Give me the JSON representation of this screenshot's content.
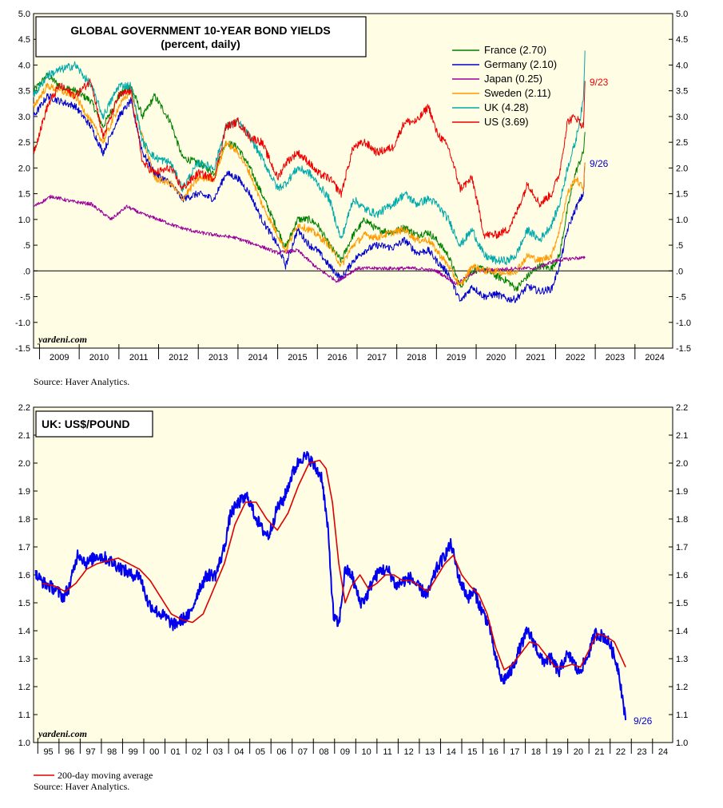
{
  "chart_data": [
    {
      "type": "line",
      "title": "GLOBAL GOVERNMENT 10-YEAR BOND YIELDS",
      "subtitle": "(percent, daily)",
      "ylim": [
        -1.5,
        5.0
      ],
      "y_ticks": [
        "5.0",
        "4.5",
        "4.0",
        "3.5",
        "3.0",
        "2.5",
        "2.0",
        "1.5",
        "1.0",
        ".5",
        ".0",
        "-.5",
        "-1.0",
        "-1.5"
      ],
      "x_ticks": [
        "2009",
        "2010",
        "2011",
        "2012",
        "2013",
        "2014",
        "2015",
        "2016",
        "2017",
        "2018",
        "2019",
        "2020",
        "2021",
        "2022",
        "2023",
        "2024"
      ],
      "x_range": [
        2008.85,
        2024.95
      ],
      "legend": "top-right",
      "series": [
        {
          "name": "France (2.70)",
          "color": "#008000",
          "x": [
            2008.85,
            2009.2,
            2009.5,
            2009.9,
            2010.3,
            2010.6,
            2011.0,
            2011.3,
            2011.6,
            2011.9,
            2012.3,
            2012.6,
            2013.0,
            2013.4,
            2013.7,
            2014.0,
            2014.3,
            2014.6,
            2015.0,
            2015.2,
            2015.5,
            2015.8,
            2016.0,
            2016.3,
            2016.6,
            2016.9,
            2017.2,
            2017.5,
            2017.9,
            2018.2,
            2018.5,
            2018.8,
            2019.0,
            2019.3,
            2019.6,
            2019.9,
            2020.2,
            2020.5,
            2020.8,
            2021.0,
            2021.3,
            2021.6,
            2021.9,
            2022.1,
            2022.3,
            2022.5,
            2022.7,
            2022.74
          ],
          "y": [
            3.5,
            3.8,
            3.6,
            3.5,
            3.3,
            2.8,
            3.4,
            3.6,
            3.0,
            3.4,
            2.9,
            2.2,
            2.1,
            1.9,
            2.5,
            2.4,
            2.0,
            1.5,
            0.8,
            0.45,
            1.0,
            1.0,
            0.9,
            0.5,
            0.2,
            0.7,
            1.0,
            0.8,
            0.75,
            0.85,
            0.7,
            0.75,
            0.6,
            0.3,
            -0.3,
            0.0,
            0.05,
            -0.1,
            -0.2,
            -0.35,
            -0.1,
            0.1,
            0.05,
            0.3,
            1.2,
            1.9,
            2.3,
            2.7
          ]
        },
        {
          "name": "Germany (2.10)",
          "color": "#0000cc",
          "x": [
            2008.85,
            2009.2,
            2009.5,
            2009.9,
            2010.3,
            2010.6,
            2011.0,
            2011.3,
            2011.6,
            2011.9,
            2012.3,
            2012.6,
            2013.0,
            2013.4,
            2013.7,
            2014.0,
            2014.3,
            2014.6,
            2015.0,
            2015.2,
            2015.5,
            2015.8,
            2016.0,
            2016.3,
            2016.6,
            2016.9,
            2017.2,
            2017.5,
            2017.9,
            2018.2,
            2018.5,
            2018.8,
            2019.0,
            2019.3,
            2019.6,
            2019.9,
            2020.2,
            2020.5,
            2020.8,
            2021.0,
            2021.3,
            2021.6,
            2021.9,
            2022.1,
            2022.3,
            2022.5,
            2022.7,
            2022.74
          ],
          "y": [
            3.0,
            3.4,
            3.3,
            3.2,
            2.8,
            2.3,
            3.0,
            3.3,
            2.3,
            1.9,
            1.7,
            1.4,
            1.5,
            1.4,
            1.9,
            1.8,
            1.5,
            1.0,
            0.5,
            0.1,
            0.8,
            0.5,
            0.4,
            0.1,
            -0.15,
            0.2,
            0.4,
            0.5,
            0.45,
            0.6,
            0.35,
            0.4,
            0.2,
            -0.05,
            -0.6,
            -0.3,
            -0.5,
            -0.45,
            -0.55,
            -0.55,
            -0.3,
            -0.4,
            -0.35,
            0.1,
            0.8,
            1.2,
            1.5,
            2.1
          ]
        },
        {
          "name": "Japan (0.25)",
          "color": "#990099",
          "x": [
            2008.85,
            2009.3,
            2009.8,
            2010.3,
            2010.8,
            2011.2,
            2011.6,
            2012.0,
            2012.5,
            2013.0,
            2013.4,
            2013.9,
            2014.5,
            2015.0,
            2015.5,
            2016.0,
            2016.5,
            2017.0,
            2017.5,
            2018.0,
            2018.5,
            2019.0,
            2019.5,
            2020.0,
            2020.5,
            2021.0,
            2021.5,
            2022.0,
            2022.5,
            2022.74
          ],
          "y": [
            1.25,
            1.45,
            1.35,
            1.3,
            1.0,
            1.25,
            1.1,
            1.0,
            0.85,
            0.75,
            0.7,
            0.65,
            0.5,
            0.35,
            0.4,
            0.05,
            -0.2,
            0.05,
            0.05,
            0.05,
            0.05,
            0.0,
            -0.25,
            0.0,
            0.02,
            0.05,
            0.05,
            0.2,
            0.25,
            0.25
          ]
        },
        {
          "name": "Sweden (2.11)",
          "color": "#ff9900",
          "x": [
            2008.85,
            2009.2,
            2009.5,
            2009.9,
            2010.3,
            2010.6,
            2011.0,
            2011.3,
            2011.6,
            2011.9,
            2012.3,
            2012.6,
            2013.0,
            2013.4,
            2013.7,
            2014.0,
            2014.3,
            2014.6,
            2015.0,
            2015.2,
            2015.5,
            2015.8,
            2016.0,
            2016.3,
            2016.6,
            2016.9,
            2017.2,
            2017.5,
            2017.9,
            2018.2,
            2018.5,
            2018.8,
            2019.0,
            2019.3,
            2019.6,
            2019.9,
            2020.2,
            2020.5,
            2020.8,
            2021.0,
            2021.3,
            2021.6,
            2021.9,
            2022.1,
            2022.3,
            2022.5,
            2022.7,
            2022.74
          ],
          "y": [
            3.2,
            3.6,
            3.5,
            3.4,
            2.9,
            2.5,
            3.2,
            3.5,
            2.6,
            1.8,
            1.7,
            1.4,
            1.8,
            1.8,
            2.5,
            2.3,
            1.9,
            1.3,
            0.7,
            0.4,
            0.9,
            0.8,
            0.7,
            0.5,
            0.1,
            0.5,
            0.7,
            0.65,
            0.75,
            0.8,
            0.6,
            0.6,
            0.4,
            0.1,
            -0.3,
            0.1,
            0.0,
            0.0,
            -0.05,
            0.0,
            0.3,
            0.2,
            0.3,
            0.8,
            1.5,
            1.8,
            1.6,
            2.11
          ]
        },
        {
          "name": "UK (4.28)",
          "color": "#00aaaa",
          "x": [
            2008.85,
            2009.2,
            2009.5,
            2009.9,
            2010.3,
            2010.6,
            2011.0,
            2011.3,
            2011.6,
            2011.9,
            2012.3,
            2012.6,
            2013.0,
            2013.4,
            2013.7,
            2014.0,
            2014.3,
            2014.6,
            2015.0,
            2015.2,
            2015.5,
            2015.8,
            2016.0,
            2016.3,
            2016.6,
            2016.9,
            2017.2,
            2017.5,
            2017.9,
            2018.2,
            2018.5,
            2018.8,
            2019.0,
            2019.3,
            2019.6,
            2019.9,
            2020.2,
            2020.5,
            2020.8,
            2021.0,
            2021.3,
            2021.6,
            2021.9,
            2022.1,
            2022.3,
            2022.5,
            2022.7,
            2022.74
          ],
          "y": [
            3.4,
            3.8,
            3.9,
            4.0,
            3.6,
            3.0,
            3.6,
            3.6,
            2.5,
            2.2,
            2.1,
            1.6,
            2.1,
            2.0,
            2.8,
            2.9,
            2.6,
            2.2,
            1.6,
            1.7,
            2.0,
            1.9,
            1.7,
            1.4,
            0.6,
            1.4,
            1.2,
            1.1,
            1.3,
            1.5,
            1.3,
            1.4,
            1.3,
            1.0,
            0.5,
            0.8,
            0.3,
            0.2,
            0.2,
            0.3,
            0.8,
            0.6,
            0.9,
            1.3,
            2.0,
            2.5,
            3.3,
            4.28
          ]
        },
        {
          "name": "US (3.69)",
          "color": "#ee0000",
          "x": [
            2008.85,
            2009.2,
            2009.5,
            2009.9,
            2010.3,
            2010.6,
            2011.0,
            2011.3,
            2011.6,
            2011.9,
            2012.3,
            2012.6,
            2013.0,
            2013.4,
            2013.7,
            2014.0,
            2014.3,
            2014.6,
            2015.0,
            2015.2,
            2015.5,
            2015.8,
            2016.0,
            2016.3,
            2016.6,
            2016.9,
            2017.2,
            2017.5,
            2017.9,
            2018.2,
            2018.5,
            2018.8,
            2019.0,
            2019.3,
            2019.6,
            2019.9,
            2020.2,
            2020.5,
            2020.8,
            2021.0,
            2021.3,
            2021.6,
            2021.9,
            2022.1,
            2022.3,
            2022.5,
            2022.7,
            2022.74
          ],
          "y": [
            2.3,
            3.2,
            3.6,
            3.4,
            3.7,
            2.6,
            3.4,
            3.5,
            2.1,
            1.9,
            2.0,
            1.6,
            1.9,
            1.8,
            2.8,
            2.9,
            2.6,
            2.5,
            1.8,
            2.1,
            2.3,
            2.1,
            1.9,
            1.8,
            1.5,
            2.4,
            2.5,
            2.3,
            2.4,
            2.9,
            2.9,
            3.2,
            2.7,
            2.4,
            1.6,
            1.8,
            0.7,
            0.7,
            0.8,
            1.1,
            1.7,
            1.3,
            1.5,
            1.9,
            2.9,
            3.0,
            2.8,
            3.69
          ]
        }
      ],
      "annotations": [
        {
          "text": "9/23",
          "color": "#ee0000"
        },
        {
          "text": "9/26",
          "color": "#0000cc"
        }
      ],
      "watermark": "yardeni.com",
      "source": "Source: Haver Analytics."
    },
    {
      "type": "line",
      "title": "UK: US$/POUND",
      "ylim": [
        1.0,
        2.2
      ],
      "y_ticks": [
        "2.2",
        "2.1",
        "2.0",
        "1.9",
        "1.8",
        "1.7",
        "1.6",
        "1.5",
        "1.4",
        "1.3",
        "1.2",
        "1.1",
        "1.0"
      ],
      "x_ticks": [
        "95",
        "96",
        "97",
        "98",
        "99",
        "00",
        "01",
        "02",
        "03",
        "04",
        "05",
        "06",
        "07",
        "08",
        "09",
        "10",
        "11",
        "12",
        "13",
        "14",
        "15",
        "16",
        "17",
        "18",
        "19",
        "20",
        "21",
        "22",
        "23",
        "24"
      ],
      "x_range": [
        1994.8,
        2024.95
      ],
      "series": [
        {
          "name": "US$/Pound",
          "color": "#0000ee",
          "x": [
            1994.9,
            1995.3,
            1995.8,
            1996.2,
            1996.5,
            1996.9,
            1997.3,
            1997.8,
            1998.2,
            1998.6,
            1999.0,
            1999.4,
            1999.8,
            2000.2,
            2000.6,
            2001.0,
            2001.4,
            2001.8,
            2002.2,
            2002.6,
            2003.0,
            2003.4,
            2003.8,
            2004.1,
            2004.5,
            2004.9,
            2005.2,
            2005.6,
            2005.9,
            2006.3,
            2006.6,
            2007.0,
            2007.4,
            2007.8,
            2008.1,
            2008.4,
            2008.7,
            2008.95,
            2009.2,
            2009.5,
            2009.8,
            2010.2,
            2010.5,
            2010.8,
            2011.2,
            2011.6,
            2011.9,
            2012.3,
            2012.6,
            2013.0,
            2013.4,
            2013.8,
            2014.2,
            2014.5,
            2014.9,
            2015.3,
            2015.6,
            2015.9,
            2016.3,
            2016.6,
            2016.9,
            2017.3,
            2017.7,
            2018.1,
            2018.4,
            2018.8,
            2019.2,
            2019.6,
            2019.9,
            2020.2,
            2020.5,
            2020.9,
            2021.3,
            2021.7,
            2022.0,
            2022.4,
            2022.73
          ],
          "y": [
            1.6,
            1.57,
            1.55,
            1.52,
            1.56,
            1.68,
            1.64,
            1.67,
            1.66,
            1.64,
            1.62,
            1.6,
            1.6,
            1.5,
            1.47,
            1.45,
            1.42,
            1.44,
            1.46,
            1.55,
            1.6,
            1.6,
            1.7,
            1.82,
            1.86,
            1.88,
            1.82,
            1.76,
            1.74,
            1.84,
            1.87,
            1.96,
            2.02,
            2.02,
            1.98,
            1.95,
            1.75,
            1.45,
            1.42,
            1.62,
            1.6,
            1.5,
            1.52,
            1.58,
            1.62,
            1.61,
            1.56,
            1.58,
            1.59,
            1.55,
            1.53,
            1.62,
            1.67,
            1.71,
            1.58,
            1.52,
            1.54,
            1.48,
            1.42,
            1.3,
            1.22,
            1.25,
            1.33,
            1.4,
            1.36,
            1.29,
            1.3,
            1.25,
            1.31,
            1.3,
            1.25,
            1.3,
            1.39,
            1.38,
            1.35,
            1.26,
            1.08
          ]
        },
        {
          "name": "200-day moving average",
          "color": "#dd0000",
          "x": [
            1995.2,
            1995.8,
            1996.3,
            1996.8,
            1997.3,
            1997.8,
            1998.3,
            1998.8,
            1999.3,
            1999.8,
            2000.3,
            2000.8,
            2001.3,
            2001.8,
            2002.3,
            2002.8,
            2003.3,
            2003.8,
            2004.3,
            2004.8,
            2005.3,
            2005.8,
            2006.3,
            2006.8,
            2007.3,
            2007.8,
            2008.3,
            2008.6,
            2008.9,
            2009.2,
            2009.5,
            2009.8,
            2010.2,
            2010.6,
            2011.0,
            2011.4,
            2011.8,
            2012.2,
            2012.6,
            2013.0,
            2013.4,
            2013.8,
            2014.2,
            2014.6,
            2015.0,
            2015.4,
            2015.8,
            2016.2,
            2016.6,
            2017.0,
            2017.4,
            2017.8,
            2018.2,
            2018.6,
            2019.0,
            2019.4,
            2019.8,
            2020.2,
            2020.6,
            2021.0,
            2021.4,
            2021.8,
            2022.2,
            2022.73
          ],
          "y": [
            1.57,
            1.56,
            1.54,
            1.57,
            1.62,
            1.64,
            1.65,
            1.66,
            1.64,
            1.62,
            1.58,
            1.52,
            1.46,
            1.44,
            1.43,
            1.46,
            1.55,
            1.64,
            1.78,
            1.86,
            1.86,
            1.8,
            1.76,
            1.82,
            1.92,
            2.0,
            2.01,
            1.98,
            1.86,
            1.64,
            1.5,
            1.56,
            1.6,
            1.55,
            1.57,
            1.6,
            1.6,
            1.58,
            1.58,
            1.56,
            1.54,
            1.59,
            1.64,
            1.67,
            1.6,
            1.56,
            1.53,
            1.46,
            1.34,
            1.26,
            1.28,
            1.32,
            1.36,
            1.35,
            1.31,
            1.27,
            1.27,
            1.28,
            1.27,
            1.33,
            1.39,
            1.38,
            1.36,
            1.27
          ]
        }
      ],
      "annotations": [
        {
          "text": "9/26",
          "color": "#0000cc"
        }
      ],
      "watermark": "yardeni.com",
      "legend_label": "200-day moving average",
      "source": "Source: Haver Analytics."
    }
  ]
}
